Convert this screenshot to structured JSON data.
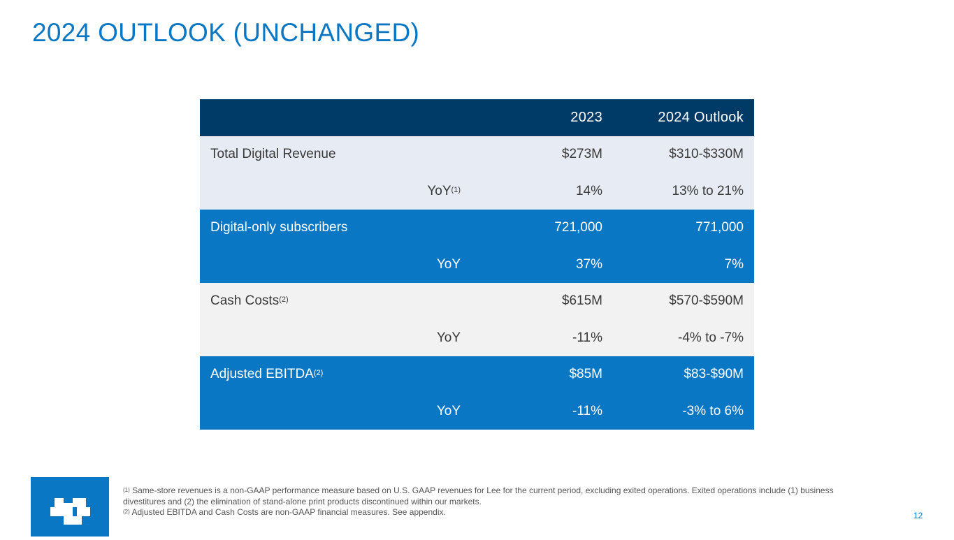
{
  "title": "2024 OUTLOOK (UNCHANGED)",
  "table": {
    "headers": {
      "col_2023": "2023",
      "col_2024": "2024 Outlook"
    },
    "rows": [
      {
        "label": "Total Digital Revenue",
        "label_sup": "",
        "sub": "",
        "sub_sup": "",
        "v2023": "$273M",
        "v2024": "$310-$330M"
      },
      {
        "label": "",
        "label_sup": "",
        "sub": "YoY",
        "sub_sup": "(1)",
        "v2023": "14%",
        "v2024": "13% to 21%"
      },
      {
        "label": "Digital-only subscribers",
        "label_sup": "",
        "sub": "",
        "sub_sup": "",
        "v2023": "721,000",
        "v2024": "771,000"
      },
      {
        "label": "",
        "label_sup": "",
        "sub": "YoY",
        "sub_sup": "",
        "v2023": "37%",
        "v2024": "7%"
      },
      {
        "label": "Cash Costs",
        "label_sup": "(2)",
        "sub": "",
        "sub_sup": "",
        "v2023": "$615M",
        "v2024": "$570-$590M"
      },
      {
        "label": "",
        "label_sup": "",
        "sub": "YoY",
        "sub_sup": "",
        "v2023": "-11%",
        "v2024": "-4% to -7%"
      },
      {
        "label": "Adjusted EBITDA",
        "label_sup": "(2)",
        "sub": "",
        "sub_sup": "",
        "v2023": "$85M",
        "v2024": "$83-$90M"
      },
      {
        "label": "",
        "label_sup": "",
        "sub": "YoY",
        "sub_sup": "",
        "v2023": "-11%",
        "v2024": "-3% to 6%"
      }
    ]
  },
  "footnotes": {
    "n1_marker": "(1)",
    "n1_text": "Same-store revenues is a non-GAAP performance measure based on U.S. GAAP revenues for Lee for the current period, excluding exited operations. Exited operations include (1) business divestitures and (2) the elimination of stand-alone print products discontinued within our markets.",
    "n2_marker": "(2)",
    "n2_text": "Adjusted EBITDA and Cash Costs are non-GAAP financial measures. See appendix."
  },
  "page_number": "12",
  "logo_icon": "lee-enterprises-logo-icon",
  "colors": {
    "title": "#0a77c4",
    "header": "#003b68",
    "blue_band": "#0a77c4",
    "light_band": "#e7ebf3",
    "gray_band": "#f2f2f2"
  }
}
